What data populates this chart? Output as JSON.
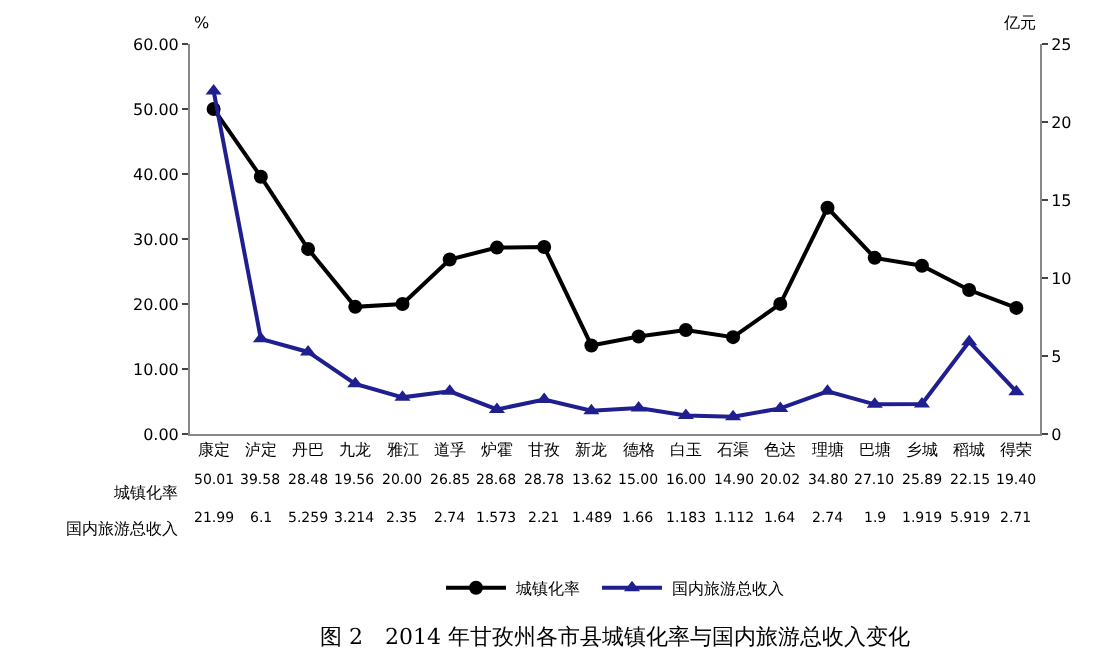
{
  "chart_data": {
    "type": "line",
    "title": "图 2　2014 年甘孜州各市县城镇化率与国内旅游总收入变化",
    "ylabel": "%",
    "y2label": "亿元",
    "categories": [
      "康定",
      "泸定",
      "丹巴",
      "九龙",
      "雅江",
      "道孚",
      "炉霍",
      "甘孜",
      "新龙",
      "德格",
      "白玉",
      "石渠",
      "色达",
      "理塘",
      "巴塘",
      "乡城",
      "稻城",
      "得荣"
    ],
    "series": [
      {
        "name": "城镇化率",
        "color": "#000000",
        "marker": "circle",
        "values": [
          50.01,
          39.58,
          28.48,
          19.56,
          20.0,
          26.85,
          28.68,
          28.78,
          13.62,
          15.0,
          16.0,
          14.9,
          20.02,
          34.8,
          27.1,
          25.89,
          22.15,
          19.4
        ],
        "value_labels": [
          "50.01",
          "39.58",
          "28.48",
          "19.56",
          "20.00",
          "26.85",
          "28.68",
          "28.78",
          "13.62",
          "15.00",
          "16.00",
          "14.90",
          "20.02",
          "34.80",
          "27.10",
          "25.89",
          "22.15",
          "19.40"
        ]
      },
      {
        "name": "国内旅游总收入",
        "color": "#1f1f8f",
        "marker": "triangle",
        "axis": "y2",
        "values": [
          21.99,
          6.1,
          5.259,
          3.214,
          2.35,
          2.74,
          1.573,
          2.21,
          1.489,
          1.66,
          1.183,
          1.112,
          1.64,
          2.74,
          1.9,
          1.919,
          5.919,
          2.71
        ],
        "value_labels": [
          "21.99",
          "6.1",
          "5.259",
          "3.214",
          "2.35",
          "2.74",
          "1.573",
          "2.21",
          "1.489",
          "1.66",
          "1.183",
          "1.112",
          "1.64",
          "2.74",
          "1.9",
          "1.919",
          "5.919",
          "2.71"
        ]
      }
    ],
    "ylim": [
      0,
      60
    ],
    "yticks": [
      {
        "value": 0,
        "label": "0.00"
      },
      {
        "value": 10,
        "label": "10.00"
      },
      {
        "value": 20,
        "label": "20.00"
      },
      {
        "value": 30,
        "label": "30.00"
      },
      {
        "value": 40,
        "label": "40.00"
      },
      {
        "value": 50,
        "label": "50.00"
      },
      {
        "value": 60,
        "label": "60.00"
      }
    ],
    "y2lim": [
      0,
      25
    ],
    "y2ticks": [
      0,
      5,
      10,
      15,
      20,
      25
    ],
    "grid": false,
    "legend": "bottom"
  }
}
